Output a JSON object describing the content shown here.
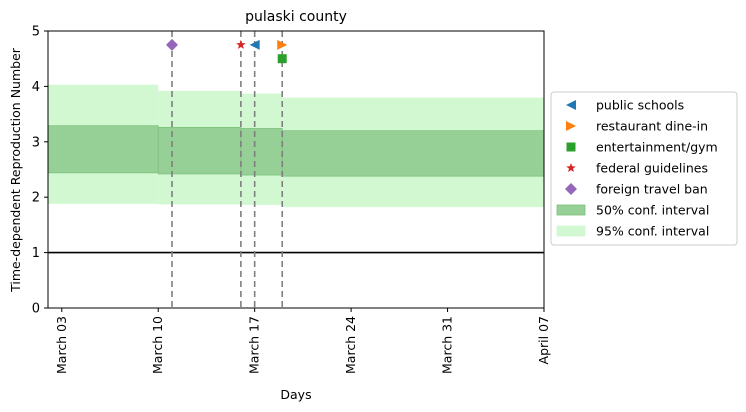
{
  "chart_data": {
    "type": "line",
    "title": "pulaski county",
    "xlabel": "Days",
    "ylabel": "Time-dependent Reproduction Number",
    "x_tick_labels": [
      {
        "date": "2020-03-03",
        "label": "March 03"
      },
      {
        "date": "2020-03-10",
        "label": "March 10"
      },
      {
        "date": "2020-03-17",
        "label": "March 17"
      },
      {
        "date": "2020-03-24",
        "label": "March 24"
      },
      {
        "date": "2020-03-31",
        "label": "March 31"
      },
      {
        "date": "2020-04-07",
        "label": "April 07"
      }
    ],
    "xlim": [
      "2020-03-02",
      "2020-04-07"
    ],
    "ylim": [
      0,
      5
    ],
    "y_ticks": [
      0,
      1,
      2,
      3,
      4,
      5
    ],
    "reference_line": {
      "y": 1,
      "color": "#000000"
    },
    "ci95": [
      {
        "start": "2020-03-02",
        "end": "2020-03-10",
        "low": 1.88,
        "high": 4.03
      },
      {
        "start": "2020-03-10",
        "end": "2020-03-16",
        "low": 1.87,
        "high": 3.92
      },
      {
        "start": "2020-03-16",
        "end": "2020-03-19",
        "low": 1.86,
        "high": 3.87
      },
      {
        "start": "2020-03-19",
        "end": "2020-04-07",
        "low": 1.82,
        "high": 3.8
      }
    ],
    "ci50": [
      {
        "start": "2020-03-02",
        "end": "2020-03-10",
        "low": 2.44,
        "high": 3.29
      },
      {
        "start": "2020-03-10",
        "end": "2020-03-16",
        "low": 2.42,
        "high": 3.26
      },
      {
        "start": "2020-03-16",
        "end": "2020-03-19",
        "low": 2.4,
        "high": 3.24
      },
      {
        "start": "2020-03-19",
        "end": "2020-04-07",
        "low": 2.38,
        "high": 3.2
      }
    ],
    "interventions": [
      {
        "name": "public schools",
        "date": "2020-03-17",
        "y": 4.75,
        "marker": "triangle-left",
        "color": "#1f77b4"
      },
      {
        "name": "restaurant dine-in",
        "date": "2020-03-19",
        "y": 4.75,
        "marker": "triangle-right",
        "color": "#ff7f0e"
      },
      {
        "name": "entertainment/gym",
        "date": "2020-03-19",
        "y": 4.5,
        "marker": "square",
        "color": "#2ca02c"
      },
      {
        "name": "federal guidelines",
        "date": "2020-03-16",
        "y": 4.75,
        "marker": "star",
        "color": "#d62728"
      },
      {
        "name": "foreign travel ban",
        "date": "2020-03-11",
        "y": 4.75,
        "marker": "diamond",
        "color": "#9467bd"
      }
    ],
    "legend": {
      "placement": "center-right-outside",
      "entries": [
        {
          "label": "public schools",
          "marker": "triangle-left",
          "color": "#1f77b4"
        },
        {
          "label": "restaurant dine-in",
          "marker": "triangle-right",
          "color": "#ff7f0e"
        },
        {
          "label": "entertainment/gym",
          "marker": "square",
          "color": "#2ca02c"
        },
        {
          "label": "federal guidelines",
          "marker": "star",
          "color": "#d62728"
        },
        {
          "label": "foreign travel ban",
          "marker": "diamond",
          "color": "#9467bd"
        },
        {
          "label": "50% conf. interval",
          "marker": "patch",
          "color": "#96d096"
        },
        {
          "label": "95% conf. interval",
          "marker": "patch",
          "color": "#d2f8d2"
        }
      ]
    },
    "colors": {
      "ci50_fill": "#96d096",
      "ci50_edge": "#7cc27c",
      "ci95_fill": "#d2f8d2",
      "intervention_line": "#7f7f7f"
    },
    "grid": false
  }
}
